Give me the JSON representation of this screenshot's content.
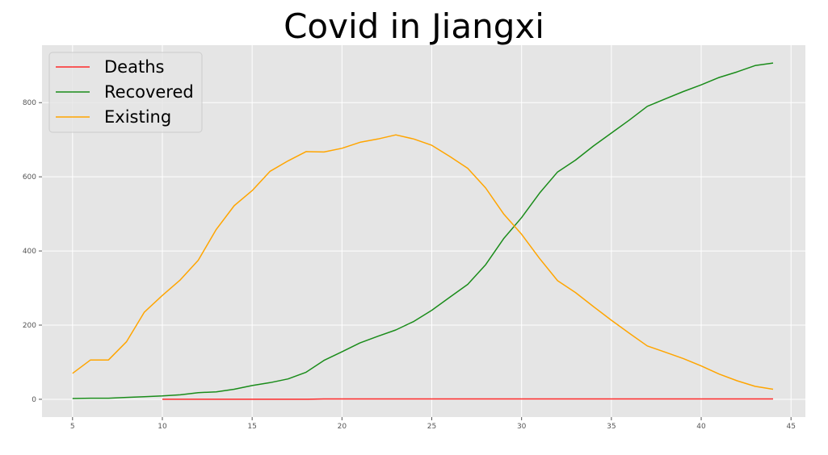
{
  "chart_data": {
    "type": "line",
    "title": "Covid in Jiangxi",
    "xlabel": "",
    "ylabel": "",
    "xlim": [
      3.3,
      45.8
    ],
    "ylim": [
      -48,
      955
    ],
    "xticks": [
      5,
      10,
      15,
      20,
      25,
      30,
      35,
      40,
      45
    ],
    "yticks": [
      0,
      200,
      400,
      600,
      800
    ],
    "grid": true,
    "legend_position": "top-left",
    "series": [
      {
        "name": "Deaths",
        "color": "#ff2a2a",
        "x": [
          10,
          11,
          12,
          13,
          14,
          15,
          16,
          17,
          18,
          19,
          20,
          21,
          22,
          23,
          24,
          25,
          26,
          27,
          28,
          29,
          30,
          31,
          32,
          33,
          34,
          35,
          36,
          37,
          38,
          39,
          40,
          41,
          42,
          43,
          44
        ],
        "y": [
          0,
          0,
          0,
          0,
          0,
          0,
          0,
          0,
          0,
          1,
          1,
          1,
          1,
          1,
          1,
          1,
          1,
          1,
          1,
          1,
          1,
          1,
          1,
          1,
          1,
          1,
          1,
          1,
          1,
          1,
          1,
          1,
          1,
          1,
          1
        ]
      },
      {
        "name": "Recovered",
        "color": "#1a8c1a",
        "x": [
          5,
          6,
          7,
          8,
          9,
          10,
          11,
          12,
          13,
          14,
          15,
          16,
          17,
          18,
          19,
          20,
          21,
          22,
          23,
          24,
          25,
          26,
          27,
          28,
          29,
          30,
          31,
          32,
          33,
          34,
          35,
          36,
          37,
          38,
          39,
          40,
          41,
          42,
          43,
          44
        ],
        "y": [
          2,
          3,
          3,
          5,
          7,
          9,
          12,
          18,
          20,
          27,
          37,
          45,
          55,
          73,
          105,
          128,
          152,
          170,
          187,
          210,
          240,
          275,
          310,
          363,
          433,
          490,
          556,
          613,
          645,
          683,
          718,
          753,
          790,
          810,
          830,
          848,
          868,
          883,
          900,
          907
        ]
      },
      {
        "name": "Existing",
        "color": "#ffa500",
        "x": [
          5,
          6,
          7,
          8,
          9,
          10,
          11,
          12,
          13,
          14,
          15,
          16,
          17,
          18,
          19,
          20,
          21,
          22,
          23,
          24,
          25,
          26,
          27,
          28,
          29,
          30,
          31,
          32,
          33,
          34,
          35,
          36,
          37,
          38,
          39,
          40,
          41,
          42,
          43,
          44
        ],
        "y": [
          70,
          106,
          106,
          155,
          235,
          280,
          322,
          375,
          458,
          522,
          563,
          615,
          643,
          668,
          667,
          677,
          693,
          702,
          713,
          702,
          685,
          655,
          623,
          570,
          500,
          445,
          380,
          320,
          288,
          250,
          213,
          178,
          144,
          127,
          110,
          90,
          68,
          50,
          35,
          27
        ]
      }
    ]
  }
}
